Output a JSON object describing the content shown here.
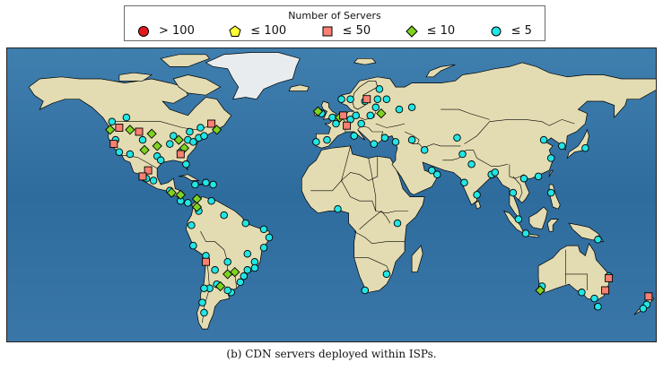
{
  "legend": {
    "title": "Number of Servers",
    "items": [
      {
        "label": "> 100",
        "marker": "circle",
        "color": "#e31a1c"
      },
      {
        "label": "≤ 100",
        "marker": "pentagon",
        "color": "#ffff33"
      },
      {
        "label": "≤ 50",
        "marker": "square",
        "color": "#fb8072"
      },
      {
        "label": "≤ 10",
        "marker": "diamond",
        "color": "#7ed321"
      },
      {
        "label": "≤ 5",
        "marker": "circle",
        "color": "#22e5e5"
      }
    ]
  },
  "caption": "(b) CDN servers deployed within ISPs.",
  "map": {
    "projection": "equirectangular",
    "lon_range": [
      -180,
      180
    ],
    "lat_range": [
      -60,
      85
    ],
    "ocean_color": "#2f6f9f",
    "land_color": "#e3dcb2",
    "border_color": "#000000",
    "markers": [
      {
        "type": "le5",
        "lon": -122,
        "lat": 49
      },
      {
        "type": "le5",
        "lon": -120,
        "lat": 40
      },
      {
        "type": "le5",
        "lon": -118,
        "lat": 34
      },
      {
        "type": "le5",
        "lon": -112,
        "lat": 33
      },
      {
        "type": "le5",
        "lon": -105,
        "lat": 40
      },
      {
        "type": "le5",
        "lon": -97,
        "lat": 32
      },
      {
        "type": "le5",
        "lon": -95,
        "lat": 30
      },
      {
        "type": "le5",
        "lon": -90,
        "lat": 38
      },
      {
        "type": "le5",
        "lon": -88,
        "lat": 42
      },
      {
        "type": "le5",
        "lon": -84,
        "lat": 34
      },
      {
        "type": "le5",
        "lon": -81,
        "lat": 28
      },
      {
        "type": "le5",
        "lon": -80,
        "lat": 40
      },
      {
        "type": "le5",
        "lon": -77,
        "lat": 39
      },
      {
        "type": "le5",
        "lon": -74,
        "lat": 41
      },
      {
        "type": "le5",
        "lon": -71,
        "lat": 42
      },
      {
        "type": "le5",
        "lon": -79,
        "lat": 44
      },
      {
        "type": "le5",
        "lon": -73,
        "lat": 46
      },
      {
        "type": "le5",
        "lon": -114,
        "lat": 51
      },
      {
        "type": "le5",
        "lon": -99,
        "lat": 20
      },
      {
        "type": "le5",
        "lon": -103,
        "lat": 21
      },
      {
        "type": "le5",
        "lon": -90,
        "lat": 15
      },
      {
        "type": "le5",
        "lon": -84,
        "lat": 10
      },
      {
        "type": "le5",
        "lon": -80,
        "lat": 9
      },
      {
        "type": "le5",
        "lon": -76,
        "lat": 18
      },
      {
        "type": "le5",
        "lon": -70,
        "lat": 19
      },
      {
        "type": "le5",
        "lon": -66,
        "lat": 18
      },
      {
        "type": "le5",
        "lon": -74,
        "lat": 5
      },
      {
        "type": "le5",
        "lon": -78,
        "lat": -2
      },
      {
        "type": "le5",
        "lon": -77,
        "lat": -12
      },
      {
        "type": "le5",
        "lon": -70,
        "lat": -17
      },
      {
        "type": "le5",
        "lon": -67,
        "lat": 10
      },
      {
        "type": "le5",
        "lon": -60,
        "lat": 3
      },
      {
        "type": "le5",
        "lon": -48,
        "lat": -1
      },
      {
        "type": "le5",
        "lon": -38,
        "lat": -4
      },
      {
        "type": "le5",
        "lon": -35,
        "lat": -8
      },
      {
        "type": "le5",
        "lon": -38,
        "lat": -13
      },
      {
        "type": "le5",
        "lon": -43,
        "lat": -20
      },
      {
        "type": "le5",
        "lon": -47,
        "lat": -16
      },
      {
        "type": "le5",
        "lon": -43,
        "lat": -23
      },
      {
        "type": "le5",
        "lon": -47,
        "lat": -24
      },
      {
        "type": "le5",
        "lon": -49,
        "lat": -27
      },
      {
        "type": "le5",
        "lon": -51,
        "lat": -30
      },
      {
        "type": "le5",
        "lon": -56,
        "lat": -35
      },
      {
        "type": "le5",
        "lon": -58,
        "lat": -34
      },
      {
        "type": "le5",
        "lon": -64,
        "lat": -31
      },
      {
        "type": "le5",
        "lon": -68,
        "lat": -33
      },
      {
        "type": "le5",
        "lon": -71,
        "lat": -33
      },
      {
        "type": "le5",
        "lon": -72,
        "lat": -40
      },
      {
        "type": "le5",
        "lon": -71,
        "lat": -45
      },
      {
        "type": "le5",
        "lon": -65,
        "lat": -24
      },
      {
        "type": "le5",
        "lon": -58,
        "lat": -20
      },
      {
        "type": "le5",
        "lon": 0,
        "lat": 51
      },
      {
        "type": "le5",
        "lon": 2,
        "lat": 48
      },
      {
        "type": "le5",
        "lon": 10,
        "lat": 50
      },
      {
        "type": "le5",
        "lon": 13,
        "lat": 52
      },
      {
        "type": "le5",
        "lon": 12,
        "lat": 42
      },
      {
        "type": "le5",
        "lon": 16,
        "lat": 48
      },
      {
        "type": "le5",
        "lon": 21,
        "lat": 52
      },
      {
        "type": "le5",
        "lon": 24,
        "lat": 56
      },
      {
        "type": "le5",
        "lon": 18,
        "lat": 59
      },
      {
        "type": "le5",
        "lon": 25,
        "lat": 60
      },
      {
        "type": "le5",
        "lon": 30,
        "lat": 60
      },
      {
        "type": "le5",
        "lon": 37,
        "lat": 55
      },
      {
        "type": "le5",
        "lon": 44,
        "lat": 56
      },
      {
        "type": "le5",
        "lon": 26,
        "lat": 65
      },
      {
        "type": "le5",
        "lon": 10,
        "lat": 60
      },
      {
        "type": "le5",
        "lon": 5,
        "lat": 60
      },
      {
        "type": "le5",
        "lon": -6,
        "lat": 53
      },
      {
        "type": "le5",
        "lon": -3,
        "lat": 40
      },
      {
        "type": "le5",
        "lon": -9,
        "lat": 39
      },
      {
        "type": "le5",
        "lon": 23,
        "lat": 38
      },
      {
        "type": "le5",
        "lon": 29,
        "lat": 41
      },
      {
        "type": "le5",
        "lon": 35,
        "lat": 39
      },
      {
        "type": "le5",
        "lon": 44,
        "lat": 40
      },
      {
        "type": "le5",
        "lon": 51,
        "lat": 35
      },
      {
        "type": "le5",
        "lon": 55,
        "lat": 25
      },
      {
        "type": "le5",
        "lon": 58,
        "lat": 23
      },
      {
        "type": "le5",
        "lon": 69,
        "lat": 41
      },
      {
        "type": "le5",
        "lon": 72,
        "lat": 33
      },
      {
        "type": "le5",
        "lon": 77,
        "lat": 28
      },
      {
        "type": "le5",
        "lon": 73,
        "lat": 19
      },
      {
        "type": "le5",
        "lon": 80,
        "lat": 13
      },
      {
        "type": "le5",
        "lon": 88,
        "lat": 23
      },
      {
        "type": "le5",
        "lon": 90,
        "lat": 24
      },
      {
        "type": "le5",
        "lon": 100,
        "lat": 14
      },
      {
        "type": "le5",
        "lon": 106,
        "lat": 21
      },
      {
        "type": "le5",
        "lon": 103,
        "lat": 1
      },
      {
        "type": "le5",
        "lon": 107,
        "lat": -6
      },
      {
        "type": "le5",
        "lon": 121,
        "lat": 14
      },
      {
        "type": "le5",
        "lon": 114,
        "lat": 22
      },
      {
        "type": "le5",
        "lon": 121,
        "lat": 31
      },
      {
        "type": "le5",
        "lon": 117,
        "lat": 40
      },
      {
        "type": "le5",
        "lon": 127,
        "lat": 37
      },
      {
        "type": "le5",
        "lon": 140,
        "lat": 36
      },
      {
        "type": "le5",
        "lon": 147,
        "lat": -9
      },
      {
        "type": "le5",
        "lon": 116,
        "lat": -32
      },
      {
        "type": "le5",
        "lon": 145,
        "lat": -38
      },
      {
        "type": "le5",
        "lon": 138,
        "lat": -35
      },
      {
        "type": "le5",
        "lon": 147,
        "lat": -42
      },
      {
        "type": "le5",
        "lon": 174,
        "lat": -41
      },
      {
        "type": "le5",
        "lon": 172,
        "lat": -43
      },
      {
        "type": "le5",
        "lon": 153,
        "lat": -27
      },
      {
        "type": "le5",
        "lon": 30,
        "lat": -26
      },
      {
        "type": "le5",
        "lon": 18,
        "lat": -34
      },
      {
        "type": "le5",
        "lon": 36,
        "lat": -1
      },
      {
        "type": "le5",
        "lon": 3,
        "lat": 6
      },
      {
        "type": "le10",
        "lon": -123,
        "lat": 45
      },
      {
        "type": "le10",
        "lon": -112,
        "lat": 45
      },
      {
        "type": "le10",
        "lon": -100,
        "lat": 43
      },
      {
        "type": "le10",
        "lon": -97,
        "lat": 37
      },
      {
        "type": "le10",
        "lon": -104,
        "lat": 35
      },
      {
        "type": "le10",
        "lon": -85,
        "lat": 40
      },
      {
        "type": "le10",
        "lon": -82,
        "lat": 36
      },
      {
        "type": "le10",
        "lon": -64,
        "lat": 45
      },
      {
        "type": "le10",
        "lon": -89,
        "lat": 14
      },
      {
        "type": "le10",
        "lon": -84,
        "lat": 13
      },
      {
        "type": "le10",
        "lon": -75,
        "lat": 11
      },
      {
        "type": "le10",
        "lon": -75,
        "lat": 7
      },
      {
        "type": "le10",
        "lon": -58,
        "lat": -26
      },
      {
        "type": "le10",
        "lon": -54,
        "lat": -25
      },
      {
        "type": "le10",
        "lon": -62,
        "lat": -32
      },
      {
        "type": "le10",
        "lon": -8,
        "lat": 54
      },
      {
        "type": "le10",
        "lon": 4,
        "lat": 51
      },
      {
        "type": "le10",
        "lon": 27,
        "lat": 53
      },
      {
        "type": "le10",
        "lon": 115,
        "lat": -34
      },
      {
        "type": "le50",
        "lon": -118,
        "lat": 46
      },
      {
        "type": "le50",
        "lon": -107,
        "lat": 44
      },
      {
        "type": "le50",
        "lon": -121,
        "lat": 38
      },
      {
        "type": "le50",
        "lon": -102,
        "lat": 25
      },
      {
        "type": "le50",
        "lon": -105,
        "lat": 22
      },
      {
        "type": "le50",
        "lon": -67,
        "lat": 48
      },
      {
        "type": "le50",
        "lon": -84,
        "lat": 33
      },
      {
        "type": "le50",
        "lon": -70,
        "lat": -20
      },
      {
        "type": "le50",
        "lon": 6,
        "lat": 52
      },
      {
        "type": "le50",
        "lon": 19,
        "lat": 60
      },
      {
        "type": "le50",
        "lon": 8,
        "lat": 47
      },
      {
        "type": "le50",
        "lon": 153,
        "lat": -28
      },
      {
        "type": "le50",
        "lon": 151,
        "lat": -34
      },
      {
        "type": "le50",
        "lon": 175,
        "lat": -37
      }
    ]
  }
}
